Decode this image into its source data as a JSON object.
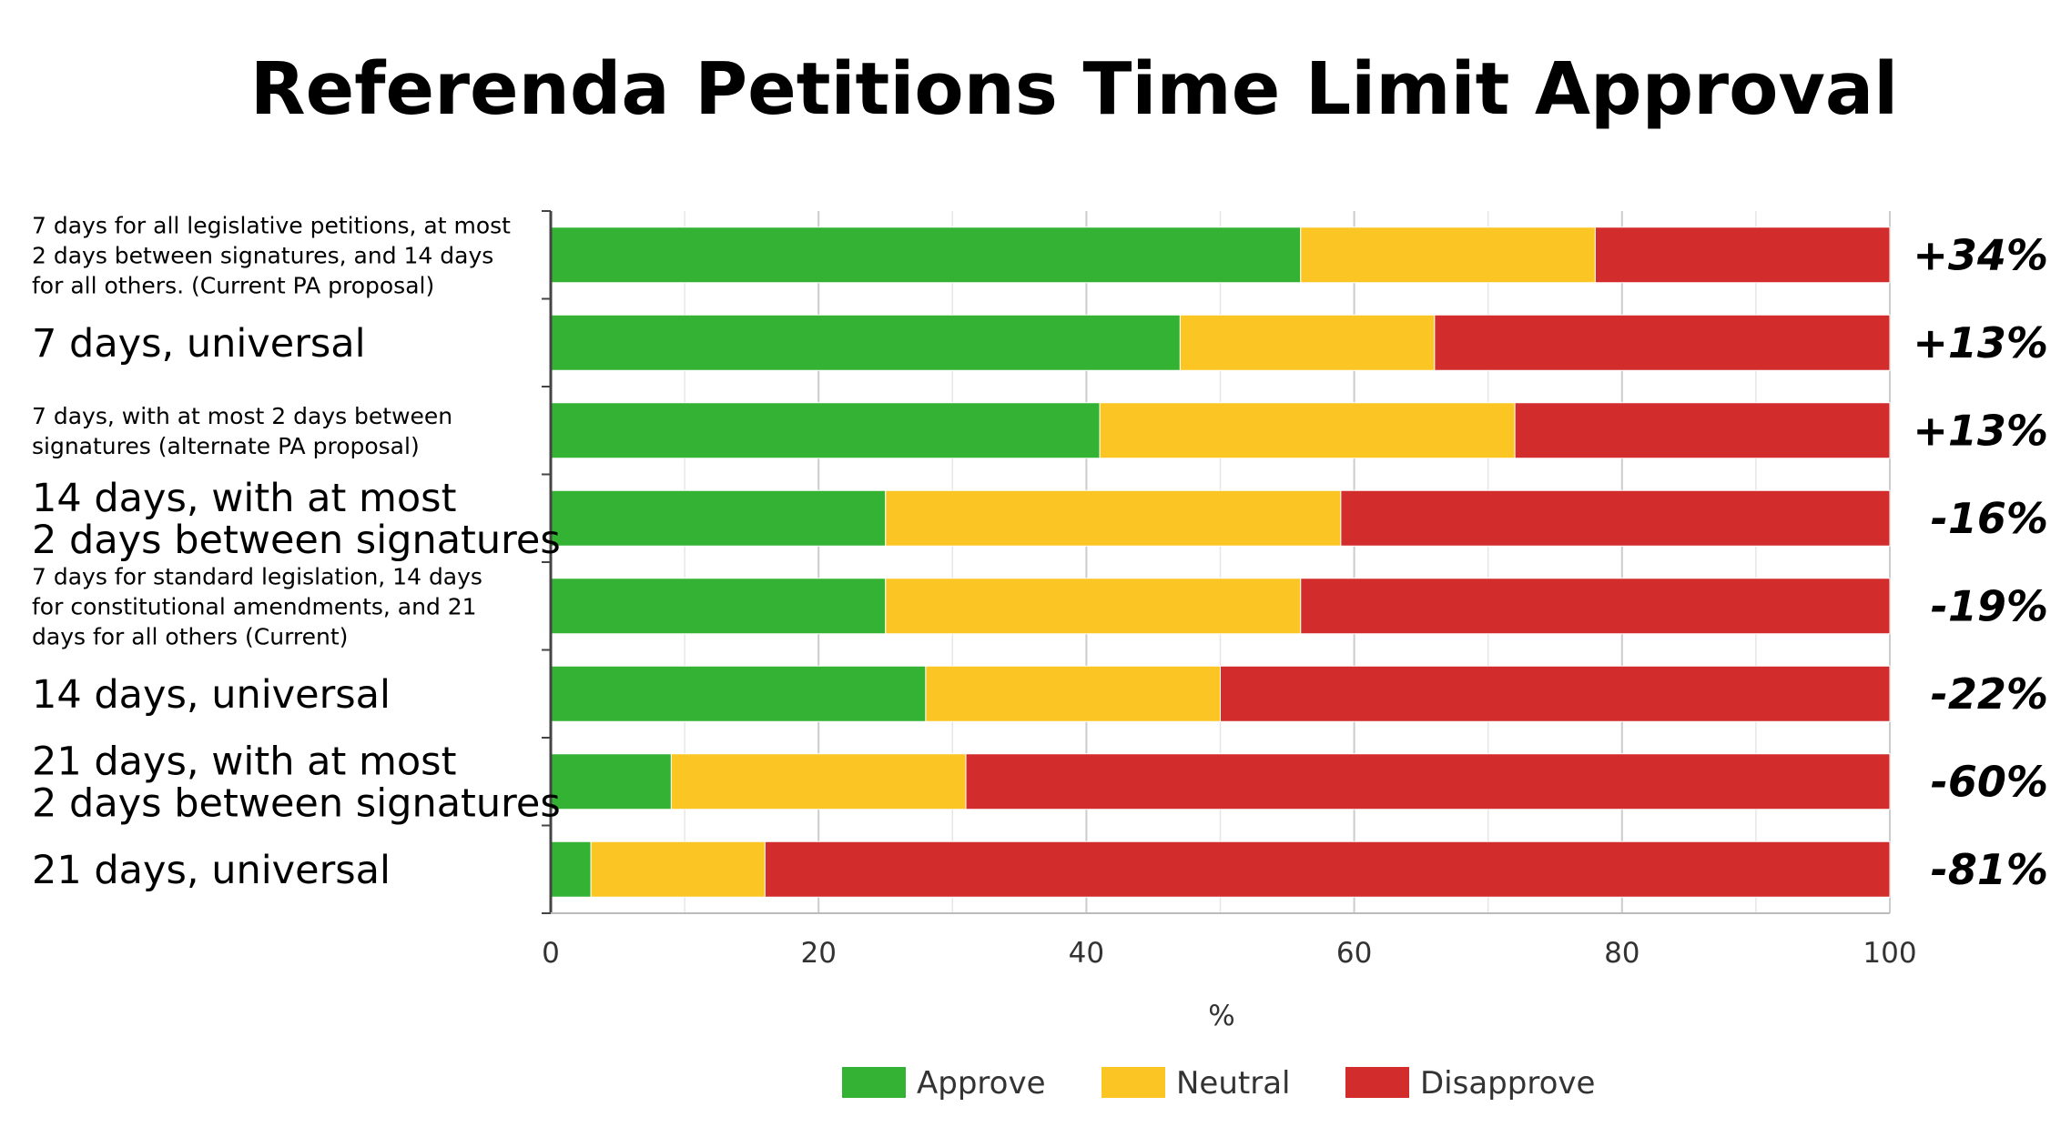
{
  "chart_data": {
    "type": "bar",
    "orientation": "horizontal",
    "stacked": true,
    "title": "Referenda Petitions Time Limit Approval",
    "xlabel": "%",
    "ylabel": "",
    "xlim": [
      0,
      100
    ],
    "x_ticks": [
      "0",
      "20",
      "40",
      "60",
      "80",
      "100"
    ],
    "grid": true,
    "legend_position": "bottom",
    "categories": [
      {
        "lines": [
          "7 days for all legislative petitions, at most",
          "2 days between signatures, and 14 days",
          "for all others. (Current PA proposal)"
        ],
        "size": "small"
      },
      {
        "lines": [
          "7 days, universal"
        ],
        "size": "large"
      },
      {
        "lines": [
          "7 days, with at most 2 days between",
          "signatures (alternate PA proposal)"
        ],
        "size": "small"
      },
      {
        "lines": [
          "14 days, with at most",
          "2 days between signatures"
        ],
        "size": "large"
      },
      {
        "lines": [
          "7 days for standard legislation, 14 days",
          "for constitutional amendments, and 21",
          "days for all others (Current)"
        ],
        "size": "small"
      },
      {
        "lines": [
          "14 days, universal"
        ],
        "size": "large"
      },
      {
        "lines": [
          "21 days, with at most",
          "2 days between signatures"
        ],
        "size": "large"
      },
      {
        "lines": [
          "21 days, universal"
        ],
        "size": "large"
      }
    ],
    "series": [
      {
        "name": "Approve",
        "color": "#33b233",
        "values": [
          56,
          47,
          41,
          25,
          25,
          28,
          9,
          3
        ]
      },
      {
        "name": "Neutral",
        "color": "#fbc623",
        "values": [
          22,
          19,
          31,
          34,
          31,
          22,
          22,
          13
        ]
      },
      {
        "name": "Disapprove",
        "color": "#d22c2c",
        "values": [
          22,
          34,
          28,
          41,
          44,
          50,
          69,
          84
        ]
      }
    ],
    "net_labels": [
      "+34%",
      "+13%",
      "+13%",
      "-16%",
      "-19%",
      "-22%",
      "-60%",
      "-81%"
    ]
  }
}
